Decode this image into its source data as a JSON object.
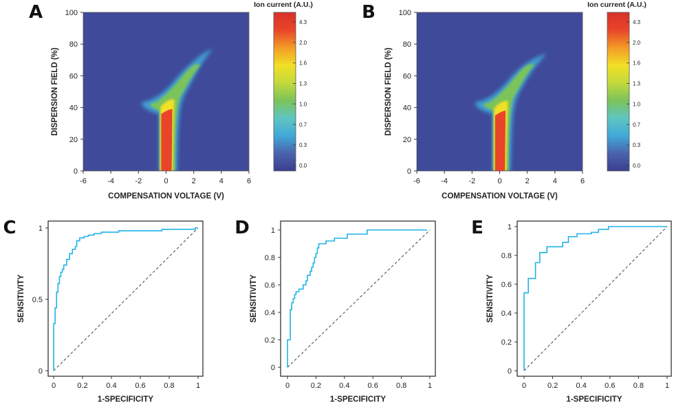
{
  "colors": {
    "heatmap_background": "#3f4a9a",
    "roc_curve": "#1fb3e8",
    "diagonal": "#444444",
    "colorscale": [
      "#3a3f8f",
      "#4a63ad",
      "#41a9d8",
      "#5fc5c0",
      "#7cc35a",
      "#c2d93c",
      "#f2e026",
      "#f39a26",
      "#e8452a",
      "#d7312a"
    ]
  },
  "chart_data": [
    {
      "panel": "A",
      "type": "heatmap",
      "xlabel": "COMPENSATION VOLTAGE (V)",
      "ylabel": "DISPERSION FIELD (%)",
      "x_ticks": [
        "-6",
        "-4",
        "-2",
        "0",
        "2",
        "4",
        "6"
      ],
      "y_ticks": [
        "0",
        "20",
        "40",
        "60",
        "80",
        "100"
      ],
      "xlim": [
        -6,
        6
      ],
      "ylim": [
        0,
        100
      ],
      "colorbar": {
        "title": "Ion current (A.U.)",
        "ticks": [
          "4.3",
          "2.0",
          "1.6",
          "1.3",
          "1.0",
          "0.7",
          "0.3",
          "0.0"
        ]
      },
      "features": {
        "core_top": 37,
        "core_half_width": 0.35,
        "plume_top": 75
      }
    },
    {
      "panel": "B",
      "type": "heatmap",
      "xlabel": "COMPENSATION VOLTAGE (V)",
      "ylabel": "DISPERSION FIELD (%)",
      "x_ticks": [
        "-6",
        "-4",
        "-2",
        "0",
        "2",
        "4",
        "6"
      ],
      "y_ticks": [
        "0",
        "20",
        "40",
        "60",
        "80",
        "100"
      ],
      "xlim": [
        -6,
        6
      ],
      "ylim": [
        0,
        100
      ],
      "colorbar": {
        "title": "Ion current (A.U.)",
        "ticks": [
          "4.3",
          "2.0",
          "1.6",
          "1.3",
          "1.0",
          "0.7",
          "0.3",
          "0.0"
        ]
      },
      "features": {
        "core_top": 36,
        "core_half_width": 0.33,
        "plume_top": 72
      }
    },
    {
      "panel": "C",
      "type": "line",
      "xlabel": "1-SPECIFICITY",
      "ylabel": "SENSITIVITY",
      "x_ticks": [
        "0",
        "0.2",
        "0.4",
        "0.6",
        "0.8",
        "1"
      ],
      "y_ticks": [
        "0",
        "0.5",
        "1"
      ],
      "xlim": [
        0,
        1
      ],
      "ylim": [
        0,
        1
      ],
      "roc_x": [
        0,
        0,
        0.01,
        0.01,
        0.02,
        0.02,
        0.03,
        0.03,
        0.04,
        0.04,
        0.05,
        0.05,
        0.06,
        0.06,
        0.07,
        0.07,
        0.09,
        0.09,
        0.11,
        0.11,
        0.13,
        0.13,
        0.15,
        0.15,
        0.16,
        0.16,
        0.18,
        0.18,
        0.21,
        0.21,
        0.24,
        0.24,
        0.28,
        0.28,
        0.33,
        0.33,
        0.45,
        0.45,
        0.75,
        0.75,
        0.98,
        0.98,
        1.0
      ],
      "roc_y": [
        0,
        0.33,
        0.33,
        0.44,
        0.44,
        0.55,
        0.55,
        0.61,
        0.61,
        0.66,
        0.66,
        0.69,
        0.69,
        0.71,
        0.71,
        0.74,
        0.74,
        0.78,
        0.78,
        0.82,
        0.82,
        0.85,
        0.85,
        0.87,
        0.87,
        0.91,
        0.91,
        0.93,
        0.93,
        0.94,
        0.94,
        0.95,
        0.95,
        0.96,
        0.96,
        0.97,
        0.97,
        0.98,
        0.98,
        0.99,
        0.99,
        1.0,
        1.0
      ]
    },
    {
      "panel": "D",
      "type": "line",
      "xlabel": "1-SPECIFICITY",
      "ylabel": "SENSITIVITY",
      "x_ticks": [
        "0",
        "0.2",
        "0.4",
        "0.6",
        "0.8",
        "1"
      ],
      "y_ticks": [
        "0",
        "0.2",
        "0.4",
        "0.6",
        "0.8",
        "1"
      ],
      "xlim": [
        0,
        1
      ],
      "ylim": [
        0,
        1
      ],
      "roc_x": [
        0,
        0,
        0.02,
        0.02,
        0.03,
        0.03,
        0.04,
        0.04,
        0.05,
        0.05,
        0.06,
        0.06,
        0.08,
        0.08,
        0.11,
        0.11,
        0.13,
        0.13,
        0.14,
        0.14,
        0.16,
        0.16,
        0.17,
        0.17,
        0.18,
        0.18,
        0.19,
        0.19,
        0.2,
        0.2,
        0.21,
        0.21,
        0.22,
        0.22,
        0.27,
        0.27,
        0.33,
        0.33,
        0.42,
        0.42,
        0.56,
        0.56,
        0.98
      ],
      "roc_y": [
        0,
        0.2,
        0.2,
        0.42,
        0.42,
        0.47,
        0.47,
        0.5,
        0.5,
        0.53,
        0.53,
        0.55,
        0.55,
        0.57,
        0.57,
        0.6,
        0.6,
        0.63,
        0.63,
        0.67,
        0.67,
        0.7,
        0.7,
        0.73,
        0.73,
        0.76,
        0.76,
        0.8,
        0.8,
        0.83,
        0.83,
        0.87,
        0.87,
        0.9,
        0.9,
        0.92,
        0.92,
        0.94,
        0.94,
        0.97,
        0.97,
        1.0,
        1.0
      ]
    },
    {
      "panel": "E",
      "type": "line",
      "xlabel": "1-SPECIFICITY",
      "ylabel": "SENSITIVITY",
      "x_ticks": [
        "0",
        "0.2",
        "0.4",
        "0.6",
        "0.8",
        "1"
      ],
      "y_ticks": [
        "0",
        "0.2",
        "0.4",
        "0.6",
        "0.8",
        "1"
      ],
      "xlim": [
        0,
        1
      ],
      "ylim": [
        0,
        1
      ],
      "roc_x": [
        0,
        0,
        0.03,
        0.03,
        0.08,
        0.08,
        0.11,
        0.11,
        0.16,
        0.16,
        0.27,
        0.27,
        0.31,
        0.31,
        0.37,
        0.37,
        0.47,
        0.47,
        0.52,
        0.52,
        0.59,
        0.59,
        0.97,
        1.0
      ],
      "roc_y": [
        0,
        0.54,
        0.54,
        0.64,
        0.64,
        0.75,
        0.75,
        0.82,
        0.82,
        0.86,
        0.86,
        0.89,
        0.89,
        0.93,
        0.93,
        0.95,
        0.95,
        0.96,
        0.96,
        0.98,
        0.98,
        1.0,
        1.0,
        1.0
      ]
    }
  ]
}
